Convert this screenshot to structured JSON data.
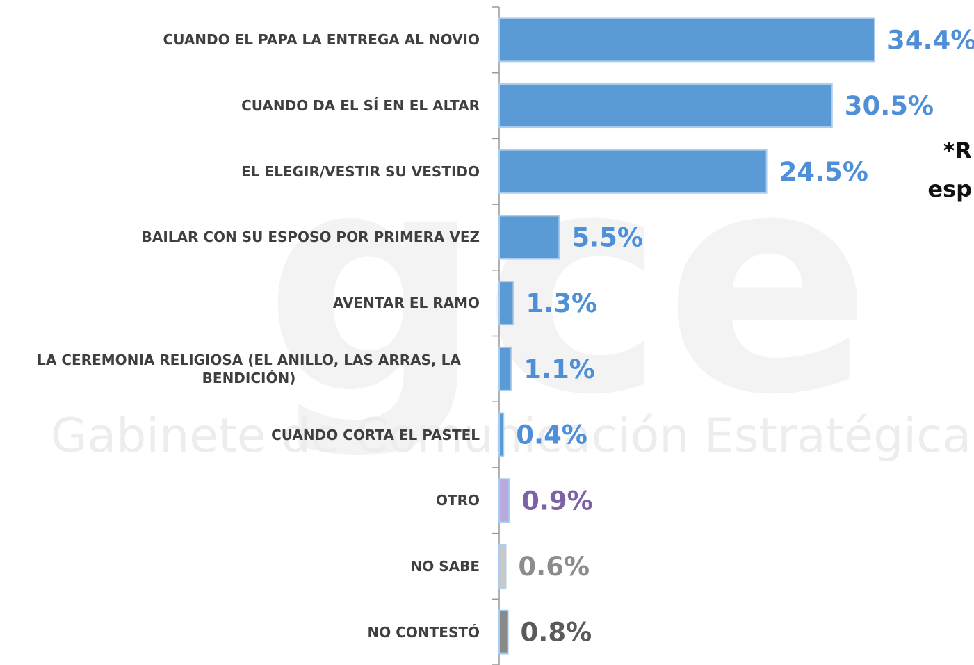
{
  "chart_data": {
    "type": "bar",
    "orientation": "horizontal",
    "categories": [
      "CUANDO EL PAPA LA ENTREGA AL NOVIO",
      "CUANDO DA EL SÍ EN EL ALTAR",
      "EL ELEGIR/VESTIR SU VESTIDO",
      "BAILAR CON SU ESPOSO POR PRIMERA VEZ",
      "AVENTAR EL RAMO",
      "LA CEREMONIA RELIGIOSA (EL ANILLO, LAS ARRAS, LA BENDICIÓN)",
      "CUANDO CORTA EL PASTEL",
      "OTRO",
      "NO SABE",
      "NO CONTESTÓ"
    ],
    "values": [
      34.4,
      30.5,
      24.5,
      5.5,
      1.3,
      1.1,
      0.4,
      0.9,
      0.6,
      0.8
    ],
    "value_labels": [
      "34.4%",
      "30.5%",
      "24.5%",
      "5.5%",
      "1.3%",
      "1.1%",
      "0.4%",
      "0.9%",
      "0.6%",
      "0.8%"
    ],
    "colors": [
      "#5b9bd5",
      "#5b9bd5",
      "#5b9bd5",
      "#5b9bd5",
      "#5b9bd5",
      "#5b9bd5",
      "#5b9bd5",
      "#b9a9dc",
      "#c9c9c9",
      "#8a8a8a"
    ],
    "label_colors": [
      "#4f8fd8",
      "#4f8fd8",
      "#4f8fd8",
      "#4f8fd8",
      "#4f8fd8",
      "#4f8fd8",
      "#4f8fd8",
      "#7e62a6",
      "#8c8c8c",
      "#5a5a5a"
    ],
    "annotation": [
      "*R",
      "esp"
    ],
    "watermark": "Gabinete de Comunicación Estratégica",
    "watermark_logo": "gce"
  }
}
